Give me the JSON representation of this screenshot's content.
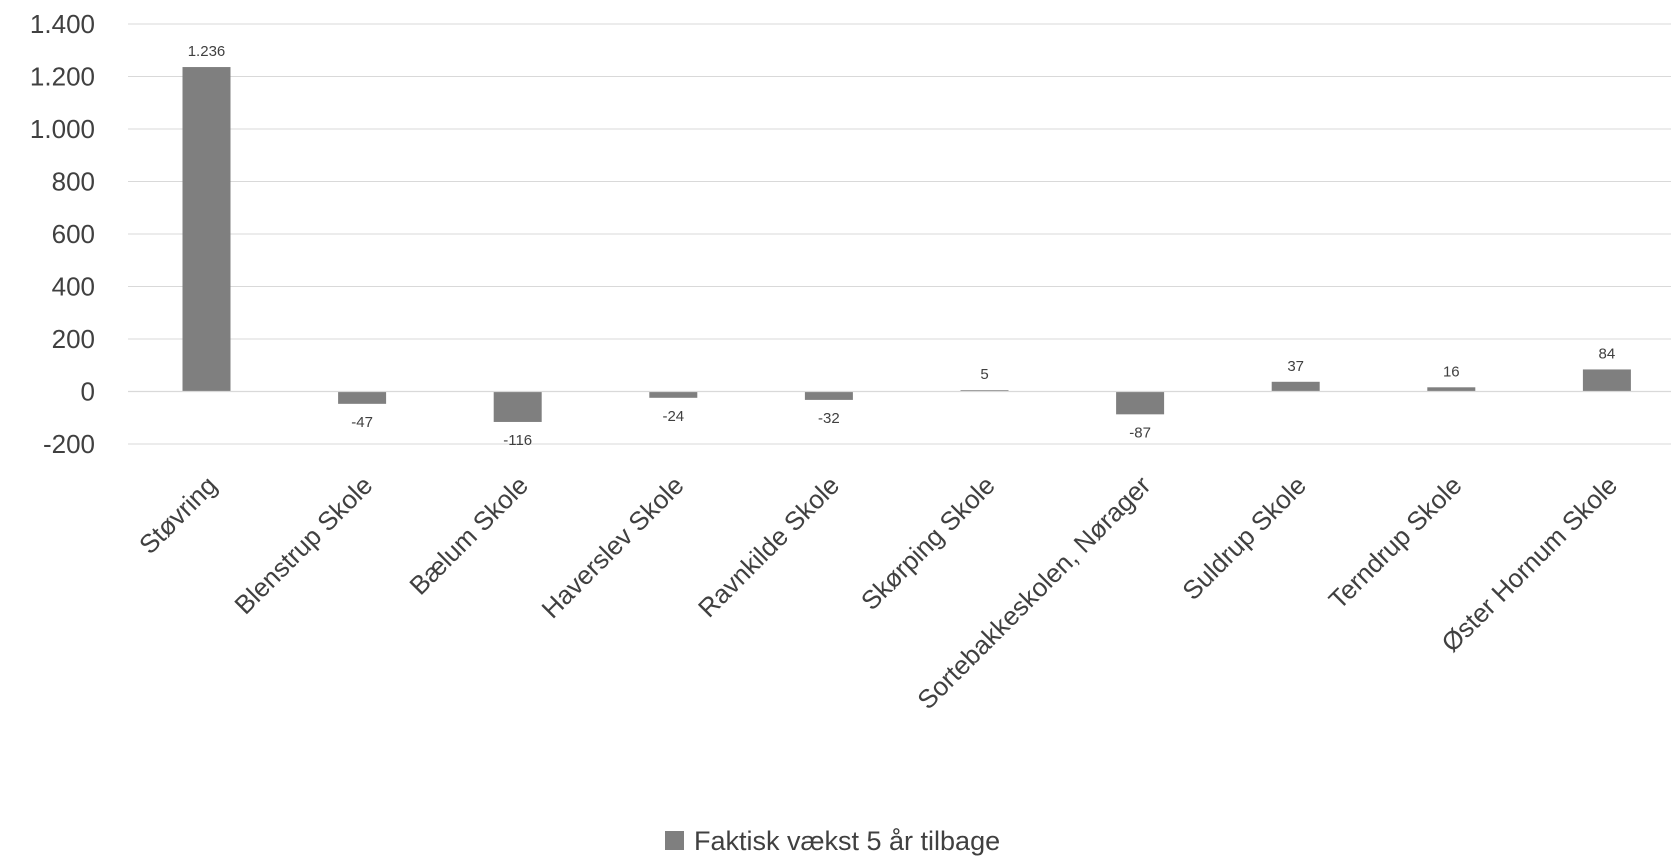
{
  "chart_data": {
    "type": "bar",
    "categories": [
      "Støvring",
      "Blenstrup Skole",
      "Bælum Skole",
      "Haverslev Skole",
      "Ravnkilde Skole",
      "Skørping Skole",
      "Sortebakkeskolen, Nørager",
      "Suldrup Skole",
      "Terndrup Skole",
      "Øster Hornum Skole"
    ],
    "series": [
      {
        "name": "Faktisk vækst 5 år tilbage",
        "values": [
          1236,
          -47,
          -116,
          -24,
          -32,
          5,
          -87,
          37,
          16,
          84
        ],
        "data_labels": [
          "1.236",
          "-47",
          "-116",
          "-24",
          "-32",
          "5",
          "-87",
          "37",
          "16",
          "84"
        ],
        "color": "#7f7f7f"
      }
    ],
    "y_ticks": [
      -200,
      0,
      200,
      400,
      600,
      800,
      1000,
      1200,
      1400
    ],
    "y_tick_labels": [
      "-200",
      "0",
      "200",
      "400",
      "600",
      "800",
      "1.000",
      "1.200",
      "1.400"
    ],
    "ylim": [
      -200,
      1400
    ],
    "grid": true,
    "gridline_color": "#d9d9d9",
    "legend_position": "bottom",
    "title": "",
    "xlabel": "",
    "ylabel": ""
  }
}
